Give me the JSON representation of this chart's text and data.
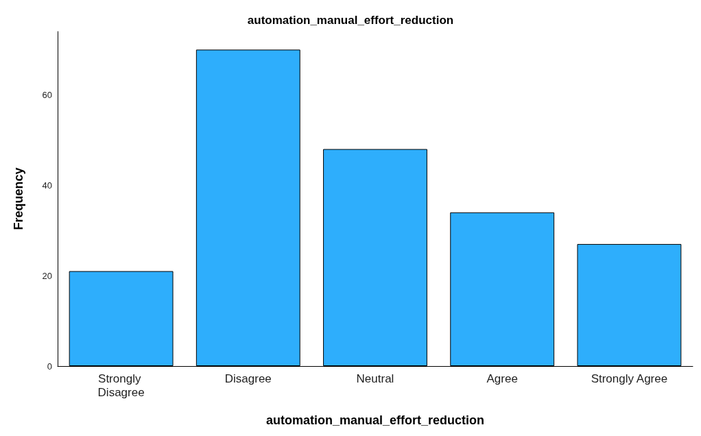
{
  "chart_data": {
    "type": "bar",
    "title": "automation_manual_effort_reduction",
    "xlabel": "automation_manual_effort_reduction",
    "ylabel": "Frequency",
    "categories": [
      "Strongly Disagree",
      "Disagree",
      "Neutral",
      "Agree",
      "Strongly Agree"
    ],
    "values": [
      21,
      70,
      48,
      34,
      27
    ],
    "color": "#2eaefc",
    "ylim": [
      0,
      74
    ],
    "yticks": [
      0,
      20,
      40,
      60
    ],
    "grid": false
  }
}
